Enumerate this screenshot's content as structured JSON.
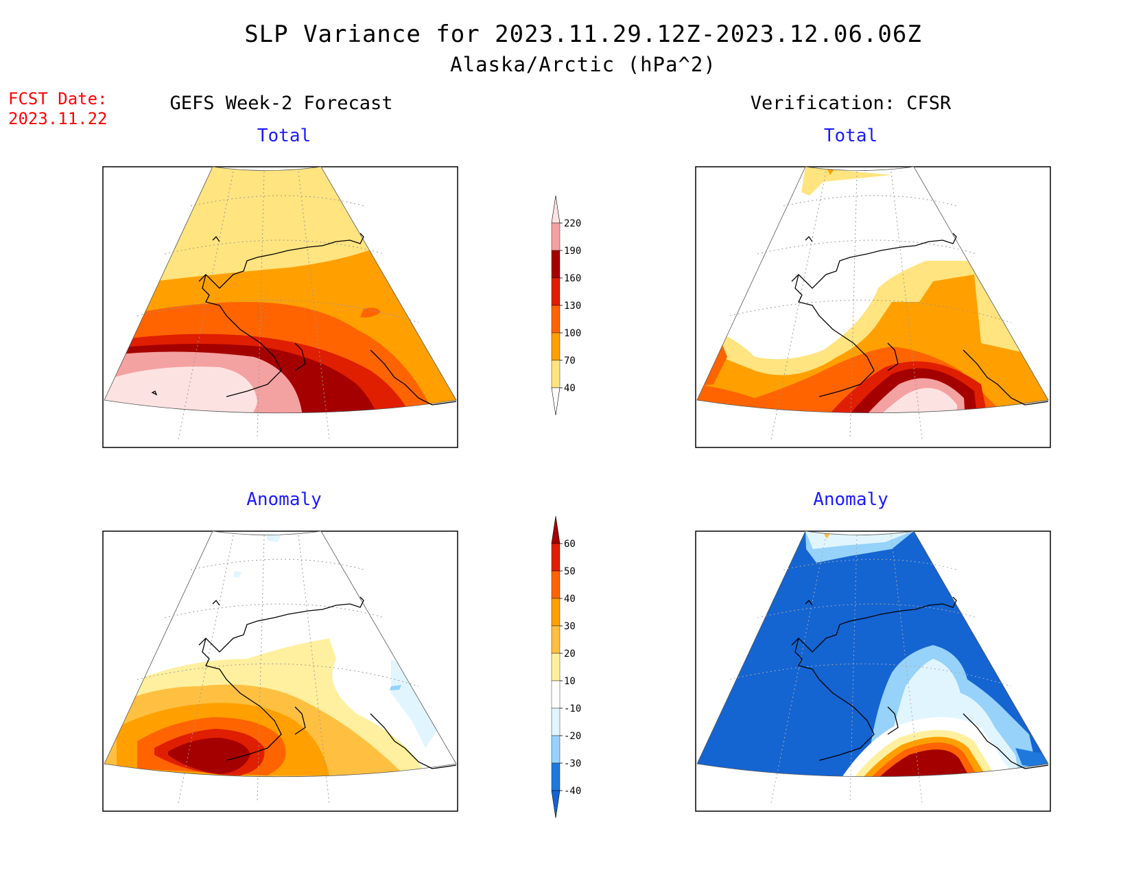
{
  "title": {
    "line1": "SLP Variance for 2023.11.29.12Z-2023.12.06.06Z",
    "line2": "Alaska/Arctic (hPa^2)"
  },
  "fcst": {
    "line1": "FCST Date:",
    "line2": "2023.11.22"
  },
  "columns": {
    "left": "GEFS Week-2 Forecast",
    "right": "Verification: CFSR"
  },
  "panels": [
    {
      "id": "forecast-total",
      "label": "Total"
    },
    {
      "id": "verification-total",
      "label": "Total"
    },
    {
      "id": "forecast-anomaly",
      "label": "Anomaly"
    },
    {
      "id": "verification-anomaly",
      "label": "Anomaly"
    }
  ],
  "colorbars": {
    "total": {
      "levels": [
        "40",
        "70",
        "100",
        "130",
        "160",
        "190",
        "220"
      ],
      "colors": [
        "#ffffff",
        "#ffe47f",
        "#ffa000",
        "#ff6400",
        "#e01e00",
        "#a50000",
        "#f4a1a1",
        "#fde2e2"
      ]
    },
    "anomaly": {
      "levels": [
        "-40",
        "-30",
        "-20",
        "-10",
        "10",
        "20",
        "30",
        "40",
        "50",
        "60"
      ],
      "colors": [
        "#1464d2",
        "#1f78dc",
        "#96d2fa",
        "#e1f5ff",
        "#ffffff",
        "#fff09f",
        "#ffc041",
        "#ffa000",
        "#ff6400",
        "#e01e00",
        "#a50000"
      ]
    }
  },
  "colors": {
    "title": "#000000",
    "fcst": "#ff0000",
    "sublabel": "#1a1aff"
  }
}
